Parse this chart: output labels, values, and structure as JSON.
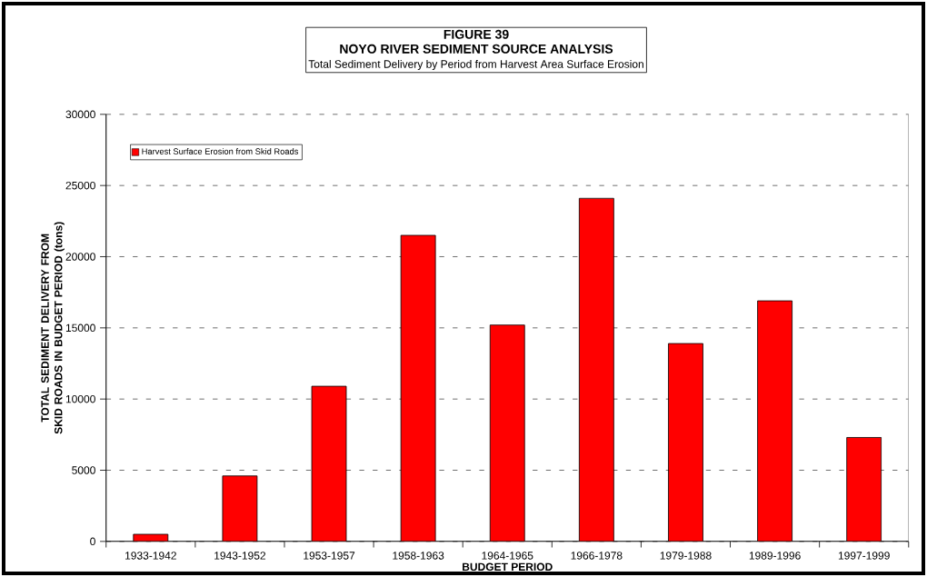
{
  "chart_data": {
    "type": "bar",
    "title": "NOYO RIVER SEDIMENT SOURCE ANALYSIS",
    "subtitle": "Total Sediment Delivery by Period from Harvest Area Surface Erosion",
    "annotations": [
      "FIGURE 39"
    ],
    "xlabel": "BUDGET PERIOD",
    "ylabel": "TOTAL SEDIMENT DELIVERY FROM SKID ROADS IN BUDGET PERIOD (tons)",
    "categories": [
      "1933-1942",
      "1943-1952",
      "1953-1957",
      "1958-1963",
      "1964-1965",
      "1966-1978",
      "1979-1988",
      "1989-1996",
      "1997-1999"
    ],
    "series": [
      {
        "name": "Harvest Surface Erosion from Skid Roads",
        "color": "#ff0000",
        "values": [
          500,
          4600,
          10900,
          21500,
          15200,
          24100,
          13900,
          16900,
          7300
        ]
      }
    ],
    "ylim": [
      0,
      30000
    ],
    "yticks": [
      0,
      5000,
      10000,
      15000,
      20000,
      25000,
      30000
    ],
    "grid": "y",
    "legend": "top left"
  }
}
